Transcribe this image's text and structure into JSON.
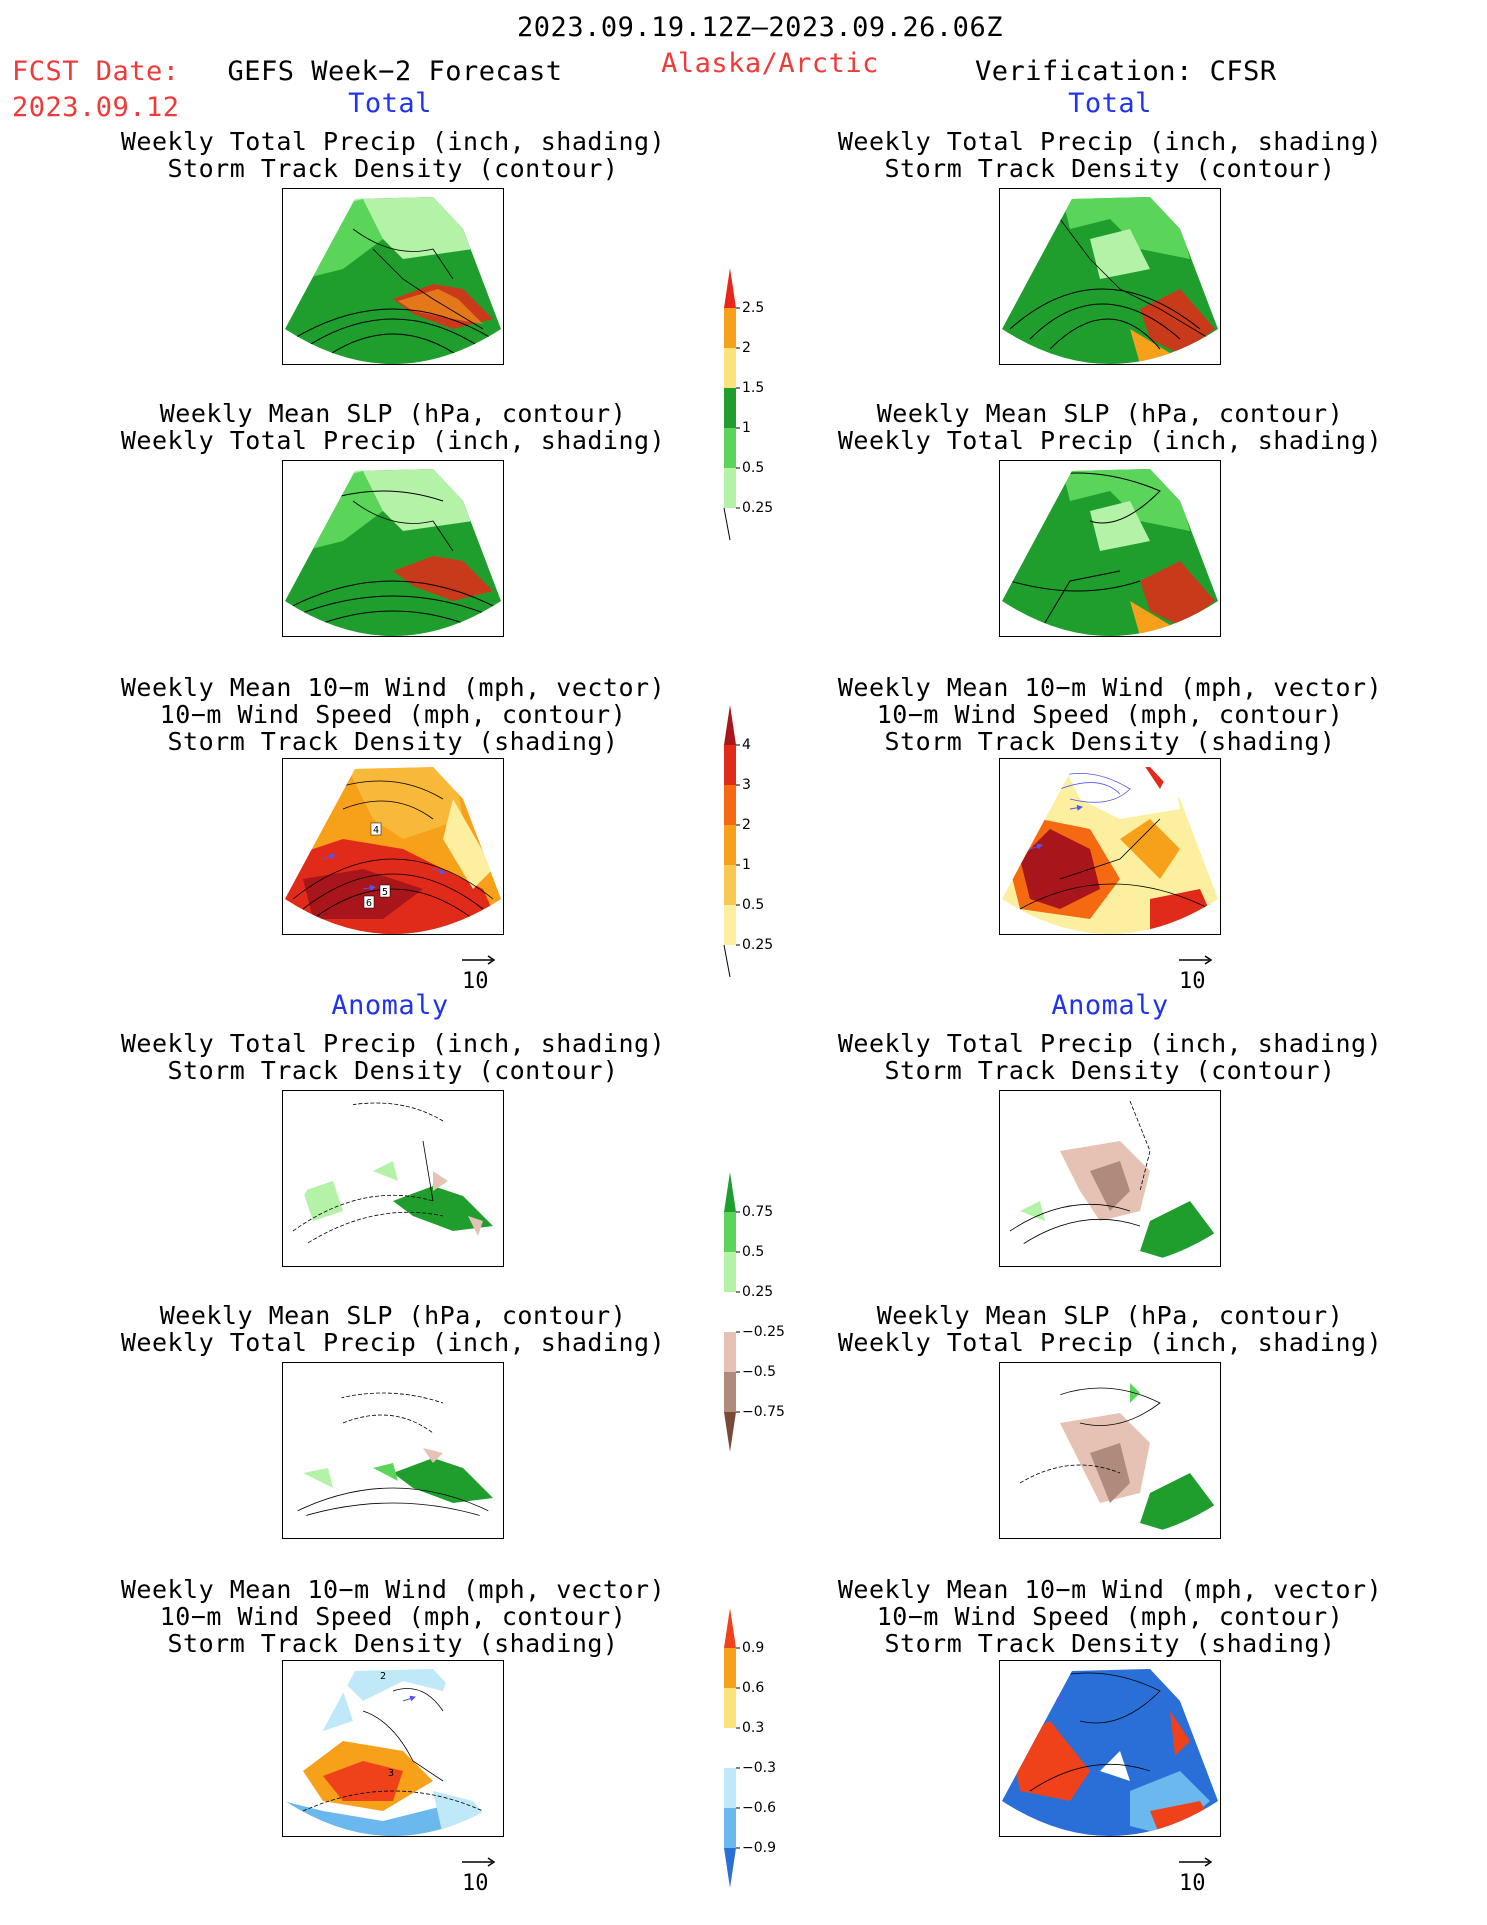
{
  "header": {
    "period": "2023.09.19.12Z—2023.09.26.06Z",
    "fcst_label": "FCST Date:",
    "fcst_date": "2023.09.12",
    "model": "GEFS Week−2 Forecast",
    "region": "Alaska/Arctic",
    "verification": "Verification: CFSR"
  },
  "sections": {
    "total": "Total",
    "anomaly": "Anomaly"
  },
  "titles": {
    "precip_track": [
      "Weekly Total Precip (inch, shading)",
      "Storm Track Density (contour)"
    ],
    "slp_precip": [
      "Weekly Mean SLP (hPa, contour)",
      "Weekly Total Precip (inch, shading)"
    ],
    "wind_track": [
      "Weekly Mean 10−m Wind (mph, vector)",
      "10−m Wind Speed (mph, contour)",
      "Storm Track Density (shading)"
    ]
  },
  "vector_ref": "10",
  "contour_labels": {
    "a": "4",
    "b": "5",
    "c": "6",
    "d": "2",
    "e": "3"
  },
  "colorbars": [
    {
      "labels": [
        "2.5",
        "2",
        "1.5",
        "1",
        "0.5",
        "0.25"
      ],
      "colors": [
        "#e8261a",
        "#f7a01a",
        "#fce27a",
        "#1f9e2d",
        "#5ad55a",
        "#b4f2a8"
      ]
    },
    {
      "labels": [
        "4",
        "3",
        "2",
        "1",
        "0.5",
        "0.25"
      ],
      "colors": [
        "#a8151a",
        "#e02a1a",
        "#f56a10",
        "#f7a01a",
        "#f9c850",
        "#fcf0a0"
      ]
    },
    {
      "labels": [
        "0.75",
        "0.5",
        "0.25",
        "−0.25",
        "−0.5",
        "−0.75"
      ],
      "colors": [
        "#1f9e2d",
        "#5ad55a",
        "#b4f2a8",
        "#ffffff",
        "#e6c2b4",
        "#b08a7a",
        "#7a4a38"
      ]
    },
    {
      "labels": [
        "0.9",
        "0.6",
        "0.3",
        "−0.3",
        "−0.6",
        "−0.9"
      ],
      "colors": [
        "#f0421a",
        "#f7a01a",
        "#fce27a",
        "#ffffff",
        "#bfe8f8",
        "#6ab8ee",
        "#2a6fd8"
      ]
    }
  ],
  "colors": {
    "precip_dark": "#1f9e2d",
    "precip_mid": "#5ad55a",
    "precip_light": "#b4f2a8",
    "precip_red": "#c93a1a",
    "precip_orange": "#f7a01a",
    "track_dark": "#a8151a",
    "track_mid": "#f56a10",
    "track_light": "#f7a01a",
    "anom_pos": "#5ad55a",
    "anom_neg": "#b08a7a",
    "wind_anom_pos": "#f0421a",
    "wind_anom_neg": "#2a6fd8",
    "vector": "#5555ee"
  }
}
